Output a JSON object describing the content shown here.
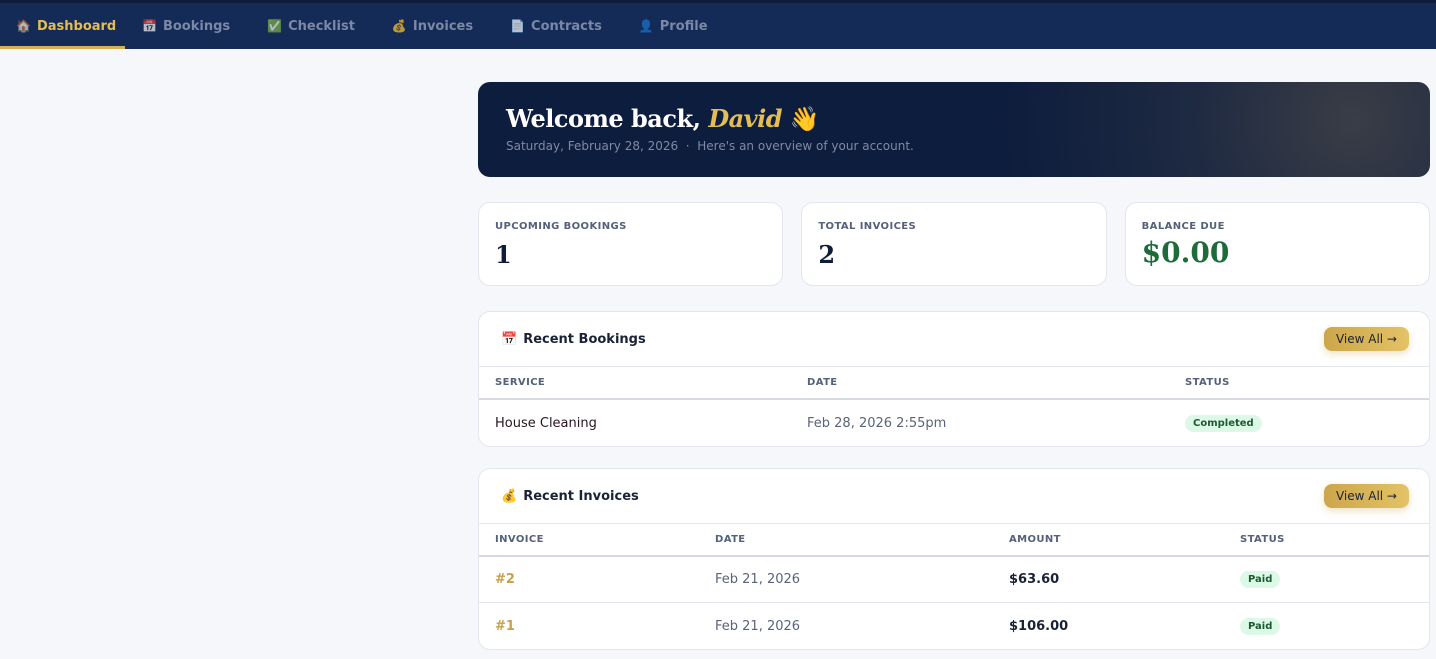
{
  "nav": {
    "tabs": [
      {
        "icon": "🏠",
        "label": "Dashboard",
        "active": true
      },
      {
        "icon": "📅",
        "label": "Bookings"
      },
      {
        "icon": "✅",
        "label": "Checklist"
      },
      {
        "icon": "💰",
        "label": "Invoices"
      },
      {
        "icon": "📄",
        "label": "Contracts"
      },
      {
        "icon": "👤",
        "label": "Profile"
      }
    ]
  },
  "hero": {
    "greeting": "Welcome back,",
    "name": "David",
    "wave": "👋",
    "date": "Saturday, February 28, 2026",
    "sep": "·",
    "subtitle": "Here's an overview of your account."
  },
  "stats": [
    {
      "label": "UPCOMING BOOKINGS",
      "value": "1"
    },
    {
      "label": "TOTAL INVOICES",
      "value": "2"
    },
    {
      "label": "BALANCE DUE",
      "value": "$0.00"
    }
  ],
  "bookings": {
    "icon": "📅",
    "title": "Recent Bookings",
    "view_all": "View All →",
    "columns": [
      "SERVICE",
      "DATE",
      "STATUS"
    ],
    "rows": [
      {
        "service": "House Cleaning",
        "date": "Feb 28, 2026 2:55pm",
        "status": "Completed"
      }
    ]
  },
  "invoices": {
    "icon": "💰",
    "title": "Recent Invoices",
    "view_all": "View All →",
    "columns": [
      "INVOICE",
      "DATE",
      "AMOUNT",
      "STATUS"
    ],
    "rows": [
      {
        "invoice": "#2",
        "date": "Feb 21, 2026",
        "amount": "$63.60",
        "status": "Paid"
      },
      {
        "invoice": "#1",
        "date": "Feb 21, 2026",
        "amount": "$106.00",
        "status": "Paid"
      }
    ]
  },
  "colors": {
    "nav": "#142a57",
    "accent": "#e4bd55",
    "success": "#dcf8e6"
  }
}
